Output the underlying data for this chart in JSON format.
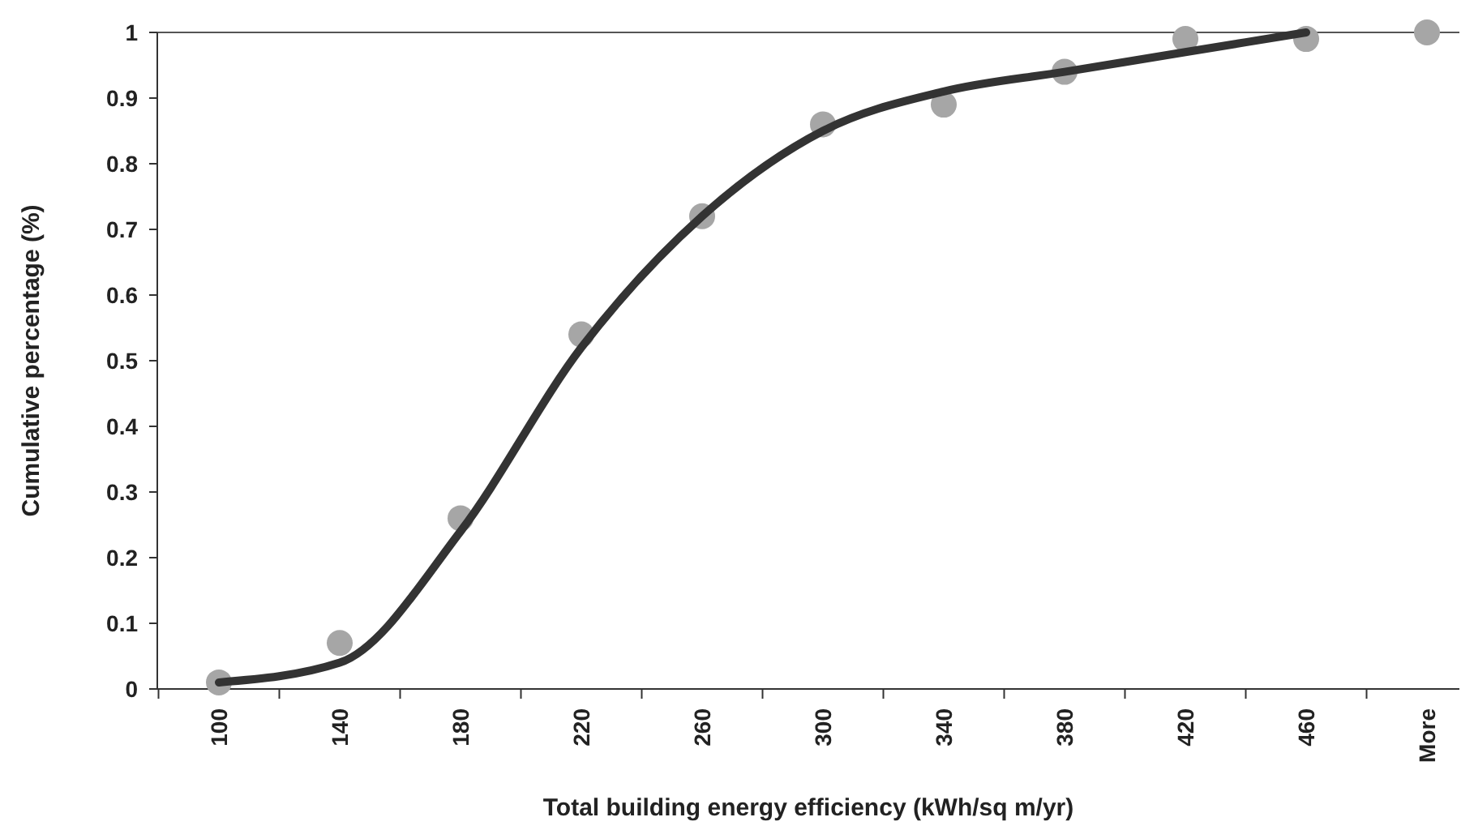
{
  "chart_data": {
    "type": "scatter",
    "xlabel": "Total building energy efficiency (kWh/sq m/yr)",
    "ylabel": "Cumulative percentage (%)",
    "categories": [
      "100",
      "140",
      "180",
      "220",
      "260",
      "300",
      "340",
      "380",
      "420",
      "460",
      "More"
    ],
    "series": [
      {
        "color": "#a6a6a6",
        "marker": "circle",
        "values": [
          0.01,
          0.07,
          0.26,
          0.54,
          0.72,
          0.86,
          0.89,
          0.94,
          0.99,
          0.99,
          1.0
        ]
      },
      {
        "type": "line",
        "color": "#333333",
        "values": [
          0.01,
          0.04,
          0.24,
          0.52,
          0.72,
          0.85,
          0.91,
          0.94,
          0.97,
          1.0,
          null
        ]
      }
    ],
    "ylim": [
      0,
      1
    ],
    "yticks": [
      0,
      0.1,
      0.2,
      0.3,
      0.4,
      0.5,
      0.6,
      0.7,
      0.8,
      0.9,
      1
    ],
    "grid": false
  }
}
